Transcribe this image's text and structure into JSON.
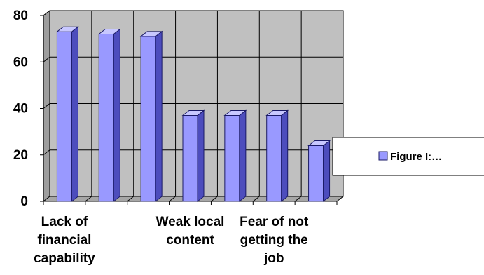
{
  "chart_data": {
    "type": "bar",
    "style": "3d-clustered-column",
    "categories": [
      [
        "Lack of",
        "financial",
        "capability"
      ],
      [
        ""
      ],
      [
        ""
      ],
      [
        "Weak local",
        "content"
      ],
      [
        ""
      ],
      [
        "Fear of not",
        "getting the",
        "job"
      ],
      [
        ""
      ]
    ],
    "values": [
      73,
      72,
      71,
      37,
      37,
      37,
      24
    ],
    "ylim": [
      0,
      80
    ],
    "yticks": [
      "0",
      "20",
      "40",
      "60",
      "80"
    ],
    "grid": true,
    "legend": {
      "position": "right",
      "entries": [
        "Figure I:…"
      ]
    },
    "colors": {
      "bar_front": "#9999ff",
      "bar_side": "#4d4dbd",
      "bar_top": "#c8c8ff",
      "bar_edge": "#1a1a66",
      "back_wall": "#c0c0c0",
      "floor": "#a6a6a6",
      "grid": "#000000"
    }
  }
}
